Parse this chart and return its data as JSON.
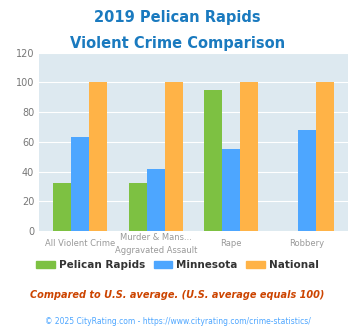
{
  "title_line1": "2019 Pelican Rapids",
  "title_line2": "Violent Crime Comparison",
  "title_color": "#1a7abf",
  "cat_labels_top": [
    "",
    "Murder & Mans...",
    "",
    ""
  ],
  "cat_labels_bot": [
    "All Violent Crime",
    "Aggravated Assault",
    "Rape",
    "Robbery"
  ],
  "pelican_rapids": [
    32,
    32,
    95,
    0
  ],
  "minnesota": [
    63,
    42,
    55,
    68
  ],
  "national": [
    100,
    100,
    100,
    100
  ],
  "bar_colors": {
    "pelican_rapids": "#7dc142",
    "minnesota": "#4da6ff",
    "national": "#ffb347"
  },
  "ylim": [
    0,
    120
  ],
  "yticks": [
    0,
    20,
    40,
    60,
    80,
    100,
    120
  ],
  "plot_bg": "#dde9f0",
  "legend_labels": [
    "Pelican Rapids",
    "Minnesota",
    "National"
  ],
  "footnote1": "Compared to U.S. average. (U.S. average equals 100)",
  "footnote2": "© 2025 CityRating.com - https://www.cityrating.com/crime-statistics/",
  "footnote1_color": "#cc4400",
  "footnote2_color": "#4da6ff"
}
